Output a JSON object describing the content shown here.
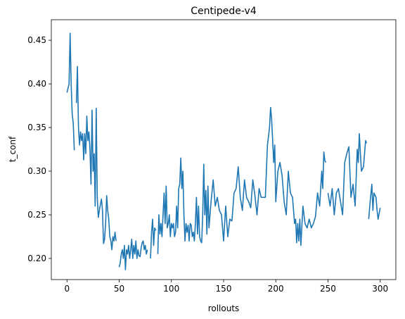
{
  "chart_data": {
    "type": "line",
    "title": "Centipede-v4",
    "xlabel": "rollouts",
    "ylabel": "t_conf",
    "x": [
      0,
      2,
      3,
      4,
      5,
      6,
      7,
      8,
      9,
      10,
      11,
      12,
      13,
      14,
      15,
      16,
      17,
      18,
      19,
      20,
      21,
      22,
      23,
      24,
      25,
      26,
      27,
      28,
      29,
      30,
      31,
      32,
      33,
      34,
      35,
      36,
      37,
      38,
      39,
      40,
      41,
      42,
      43,
      44,
      45,
      46,
      47,
      48,
      50,
      51,
      52,
      53,
      54,
      55,
      56,
      57,
      58,
      59,
      60,
      61,
      62,
      63,
      64,
      65,
      66,
      67,
      68,
      69,
      70,
      71,
      72,
      73,
      74,
      75,
      76,
      77,
      78,
      80,
      81,
      82,
      83,
      84,
      85,
      86,
      87,
      88,
      89,
      90,
      91,
      92,
      93,
      94,
      95,
      96,
      97,
      98,
      99,
      100,
      101,
      102,
      103,
      104,
      105,
      106,
      107,
      108,
      109,
      110,
      111,
      112,
      113,
      114,
      115,
      116,
      117,
      118,
      119,
      120,
      121,
      122,
      123,
      124,
      125,
      126,
      127,
      128,
      129,
      130,
      131,
      132,
      133,
      134,
      135,
      136,
      138,
      140,
      142,
      144,
      146,
      148,
      150,
      152,
      154,
      156,
      158,
      160,
      162,
      164,
      166,
      168,
      170,
      172,
      174,
      176,
      178,
      180,
      182,
      184,
      186,
      188,
      190,
      192,
      194,
      195,
      196,
      198,
      199,
      200,
      202,
      204,
      206,
      208,
      210,
      212,
      214,
      216,
      218,
      219,
      220,
      221,
      222,
      223,
      224,
      226,
      228,
      230,
      232,
      234,
      236,
      238,
      240,
      242,
      244,
      245,
      246,
      247,
      248,
      249,
      250,
      252,
      254,
      256,
      258,
      260,
      262,
      264,
      266,
      268,
      270,
      272,
      274,
      276,
      278,
      279,
      280,
      282,
      284,
      286,
      287,
      288,
      289,
      290,
      292,
      293,
      294,
      296,
      297,
      298,
      300
    ],
    "series": [
      {
        "name": "t_conf",
        "color": "#1f77b4",
        "values": [
          0.39,
          0.4,
          0.458,
          0.4,
          0.365,
          0.355,
          0.324,
          null,
          0.378,
          0.42,
          0.35,
          0.33,
          0.345,
          0.335,
          0.343,
          0.313,
          0.343,
          0.32,
          0.363,
          0.335,
          0.345,
          0.325,
          0.285,
          0.37,
          0.3,
          0.32,
          0.26,
          0.372,
          0.27,
          0.247,
          0.255,
          0.262,
          0.268,
          0.255,
          0.217,
          0.222,
          0.24,
          0.272,
          0.255,
          0.245,
          0.225,
          0.22,
          0.21,
          0.225,
          0.22,
          0.23,
          0.22,
          null,
          0.19,
          0.195,
          0.205,
          0.21,
          0.2,
          0.215,
          0.187,
          0.21,
          0.205,
          0.215,
          0.2,
          0.21,
          0.222,
          0.2,
          0.215,
          0.205,
          0.22,
          0.2,
          0.21,
          0.203,
          0.202,
          0.212,
          0.218,
          0.22,
          0.21,
          0.215,
          0.205,
          0.21,
          null,
          0.2,
          0.23,
          0.245,
          0.215,
          0.235,
          0.232,
          null,
          0.205,
          0.25,
          0.228,
          0.24,
          0.225,
          0.25,
          0.275,
          0.24,
          0.283,
          0.235,
          0.24,
          0.25,
          0.225,
          0.24,
          0.235,
          0.24,
          0.225,
          0.23,
          0.26,
          0.235,
          0.28,
          0.285,
          0.315,
          0.28,
          0.3,
          0.25,
          0.22,
          0.24,
          0.23,
          0.238,
          0.22,
          0.24,
          0.238,
          0.225,
          0.23,
          0.22,
          0.24,
          0.27,
          0.228,
          0.26,
          0.225,
          0.22,
          0.218,
          0.25,
          0.308,
          0.25,
          0.278,
          0.228,
          0.283,
          0.235,
          0.265,
          0.29,
          0.26,
          0.27,
          0.255,
          0.25,
          0.22,
          0.26,
          0.225,
          0.245,
          0.243,
          0.275,
          0.28,
          0.305,
          0.27,
          0.255,
          0.29,
          0.27,
          0.265,
          0.258,
          0.29,
          0.272,
          0.25,
          0.28,
          0.27,
          0.27,
          0.27,
          0.33,
          0.35,
          0.373,
          0.36,
          0.31,
          0.33,
          0.265,
          0.3,
          0.31,
          0.295,
          0.265,
          0.25,
          0.3,
          0.275,
          0.27,
          0.24,
          0.245,
          0.218,
          0.24,
          0.22,
          0.245,
          0.215,
          0.26,
          0.24,
          0.235,
          0.245,
          0.235,
          0.24,
          0.248,
          0.275,
          0.26,
          0.3,
          0.28,
          0.322,
          0.312,
          0.31,
          null,
          0.275,
          0.26,
          0.28,
          0.25,
          0.275,
          0.28,
          0.265,
          0.25,
          0.31,
          0.32,
          0.328,
          0.27,
          0.285,
          0.26,
          0.325,
          0.31,
          0.343,
          0.3,
          0.305,
          0.335,
          0.332,
          null,
          0.245,
          0.26,
          0.285,
          0.255,
          0.275,
          0.27,
          0.255,
          0.245,
          0.258
        ]
      }
    ],
    "xlim": [
      -15,
      315
    ],
    "xticks": [
      0,
      50,
      100,
      150,
      200,
      250,
      300
    ],
    "ylim": [
      0.1758,
      0.4735
    ],
    "yticks": [
      {
        "value": 0.2,
        "label": "0.20"
      },
      {
        "value": 0.25,
        "label": "0.25"
      },
      {
        "value": 0.3,
        "label": "0.30"
      },
      {
        "value": 0.35,
        "label": "0.35"
      },
      {
        "value": 0.4,
        "label": "0.40"
      },
      {
        "value": 0.45,
        "label": "0.45"
      }
    ]
  }
}
